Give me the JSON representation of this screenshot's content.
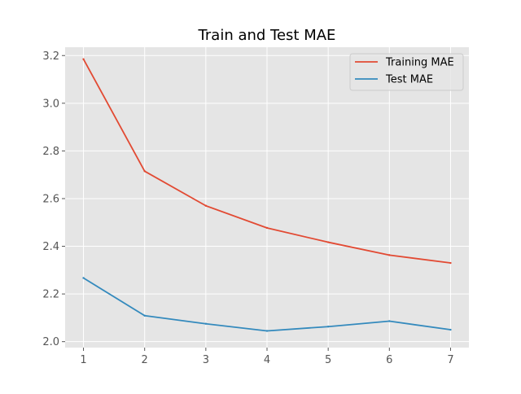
{
  "chart_data": {
    "type": "line",
    "title": "Train and Test MAE",
    "xlabel": "",
    "ylabel": "",
    "x": [
      1,
      2,
      3,
      4,
      5,
      6,
      7
    ],
    "series": [
      {
        "name": "Training MAE",
        "color": "#E24A33",
        "values": [
          3.185,
          2.715,
          2.57,
          2.477,
          2.417,
          2.363,
          2.33
        ]
      },
      {
        "name": "Test MAE",
        "color": "#348ABD",
        "values": [
          2.267,
          2.109,
          2.075,
          2.045,
          2.063,
          2.086,
          2.05
        ]
      }
    ],
    "xlim": [
      0.7,
      7.3
    ],
    "ylim": [
      1.975,
      3.235
    ],
    "xticks": [
      1,
      2,
      3,
      4,
      5,
      6,
      7
    ],
    "yticks": [
      2.0,
      2.2,
      2.4,
      2.6,
      2.8,
      3.0,
      3.2
    ],
    "ytick_labels": [
      "2.0",
      "2.2",
      "2.4",
      "2.6",
      "2.8",
      "3.0",
      "3.2"
    ],
    "grid": true,
    "legend_position": "top-right",
    "plot_background": "#E5E5E5"
  }
}
